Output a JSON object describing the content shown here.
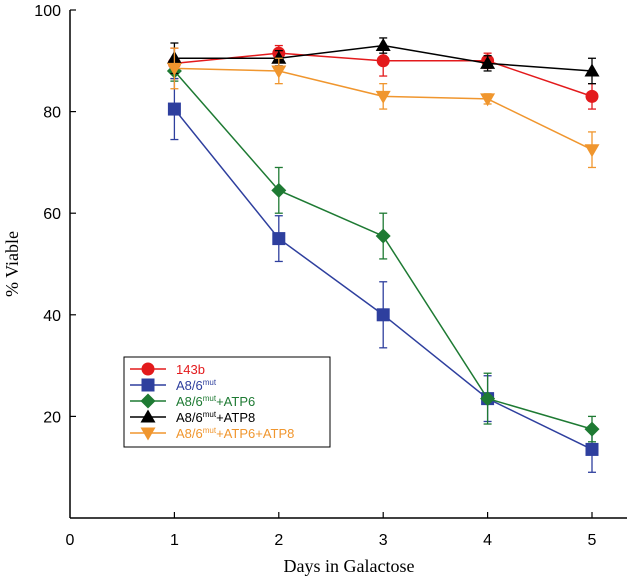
{
  "chart_data": {
    "type": "line",
    "xlabel": "Days in Galactose",
    "ylabel": "% Viable",
    "xlim": [
      0,
      5.3
    ],
    "ylim": [
      0,
      100
    ],
    "xticks": [
      0,
      1,
      2,
      3,
      4,
      5
    ],
    "yticks": [
      20,
      40,
      60,
      80,
      100
    ],
    "x": [
      1,
      2,
      3,
      4,
      5
    ],
    "legend_position": "bottom-left",
    "grid": false,
    "series": [
      {
        "name": "143b",
        "legend_parts": [
          {
            "t": "143b",
            "sup": false
          }
        ],
        "color": "#e31a1c",
        "marker": "circle",
        "values": [
          89.5,
          91.5,
          90,
          90,
          83
        ],
        "errors": [
          3,
          1.5,
          3,
          1.5,
          2.5
        ]
      },
      {
        "name": "A8/6mut",
        "legend_parts": [
          {
            "t": "A8/6",
            "sup": false
          },
          {
            "t": "mut",
            "sup": true
          }
        ],
        "color": "#2e3f9e",
        "marker": "square",
        "values": [
          80.5,
          55,
          40,
          23.5,
          13.5
        ],
        "errors": [
          6,
          4.5,
          6.5,
          4.5,
          4.5
        ]
      },
      {
        "name": "A8/6mut+ATP6",
        "legend_parts": [
          {
            "t": "A8/6",
            "sup": false
          },
          {
            "t": "mut",
            "sup": true
          },
          {
            "t": "+ATP6",
            "sup": false
          }
        ],
        "color": "#1e7a33",
        "marker": "diamond",
        "values": [
          88,
          64.5,
          55.5,
          23.5,
          17.5
        ],
        "errors": [
          2,
          4.5,
          4.5,
          5,
          2.5
        ]
      },
      {
        "name": "A8/6mut+ATP8",
        "legend_parts": [
          {
            "t": "A8/6",
            "sup": false
          },
          {
            "t": "mut",
            "sup": true
          },
          {
            "t": "+ATP8",
            "sup": false
          }
        ],
        "color": "#000000",
        "marker": "triangle-up",
        "values": [
          90.5,
          90.5,
          93,
          89.5,
          88
        ],
        "errors": [
          3,
          1.5,
          1.5,
          1.5,
          2.5
        ]
      },
      {
        "name": "A8/6mut+ATP6+ATP8",
        "legend_parts": [
          {
            "t": "A8/6",
            "sup": false
          },
          {
            "t": "mut",
            "sup": true
          },
          {
            "t": "+ATP6+ATP8",
            "sup": false
          }
        ],
        "color": "#f0962e",
        "marker": "triangle-down",
        "values": [
          88.5,
          88,
          83,
          82.5,
          72.5
        ],
        "errors": [
          4,
          2.5,
          2.5,
          1,
          3.5
        ]
      }
    ]
  }
}
